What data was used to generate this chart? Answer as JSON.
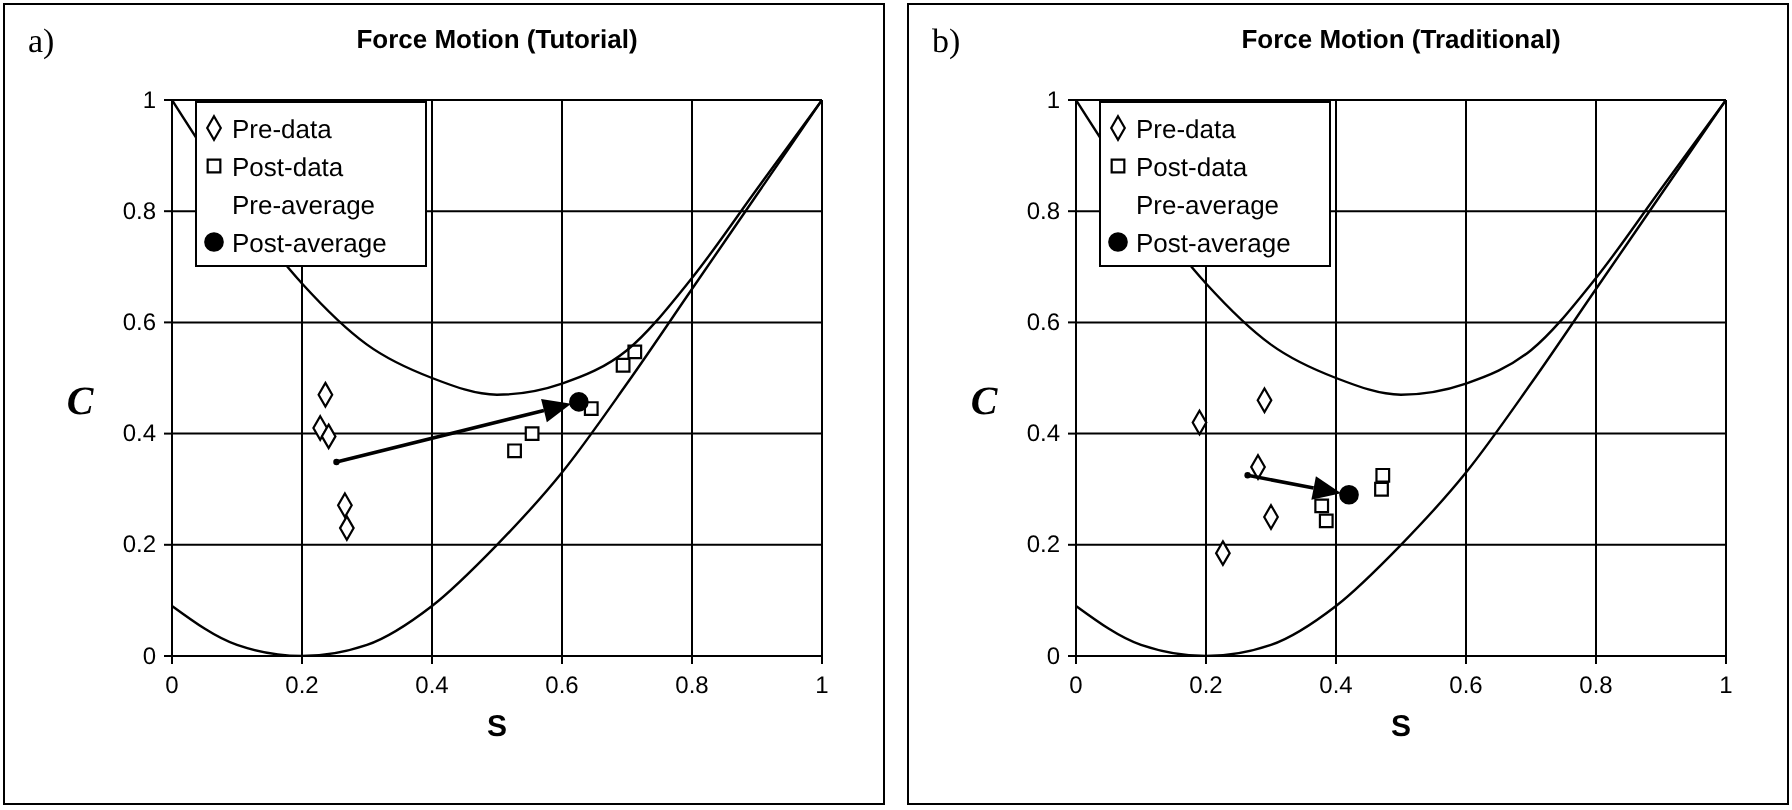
{
  "chart_data": [
    {
      "type": "scatter",
      "title": "Force Motion (Tutorial)",
      "xlabel": "S",
      "ylabel": "C",
      "annotations": [
        "a)"
      ],
      "xlim": [
        0,
        1
      ],
      "ylim": [
        0,
        1
      ],
      "xticks": [
        0,
        0.2,
        0.4,
        0.6,
        0.8,
        1
      ],
      "yticks": [
        0,
        0.2,
        0.4,
        0.6,
        0.8,
        1
      ],
      "grid": true,
      "legend": "top left",
      "series": [
        {
          "name": "Pre-data",
          "color": "#000000",
          "marker": "diamond",
          "x": [
            0.236,
            0.228,
            0.241,
            0.266,
            0.269
          ],
          "values": [
            0.47,
            0.41,
            0.395,
            0.271,
            0.23
          ]
        },
        {
          "name": "Post-data",
          "color": "#000000",
          "marker": "square",
          "x": [
            0.527,
            0.554,
            0.645,
            0.694,
            0.712
          ],
          "values": [
            0.369,
            0.4,
            0.445,
            0.523,
            0.547
          ]
        },
        {
          "name": "Pre-average",
          "color": "#000000",
          "x": [
            0.253
          ],
          "values": [
            0.349
          ]
        },
        {
          "name": "Post-average",
          "color": "#000000",
          "marker": "circle",
          "x": [
            0.626
          ],
          "values": [
            0.457
          ]
        },
        {
          "type": "line",
          "color": "#000000",
          "marker": "none",
          "x": [
            0,
            0.1,
            0.2,
            0.3,
            0.4,
            0.5,
            0.6,
            0.7,
            0.8,
            0.9,
            1
          ],
          "values": [
            0.09,
            0.02,
            0,
            0.02,
            0.09,
            0.2,
            0.33,
            0.49,
            0.66,
            0.83,
            1
          ]
        },
        {
          "type": "line",
          "color": "#000000",
          "marker": "none",
          "x": [
            0,
            0.2,
            0.3,
            0.4,
            0.5,
            0.6,
            0.7,
            0.8,
            0.9,
            1
          ],
          "values": [
            1,
            0.67,
            0.56,
            0.5,
            0.47,
            0.49,
            0.55,
            0.68,
            0.84,
            1
          ]
        }
      ]
    },
    {
      "type": "scatter",
      "title": "Force Motion (Traditional)",
      "xlabel": "S",
      "ylabel": "C",
      "annotations": [
        "b)"
      ],
      "xlim": [
        0,
        1
      ],
      "ylim": [
        0,
        1
      ],
      "xticks": [
        0,
        0.2,
        0.4,
        0.6,
        0.8,
        1
      ],
      "yticks": [
        0,
        0.2,
        0.4,
        0.6,
        0.8,
        1
      ],
      "grid": true,
      "legend": "top left",
      "series": [
        {
          "name": "Pre-data",
          "color": "#000000",
          "marker": "diamond",
          "x": [
            0.29,
            0.19,
            0.28,
            0.3,
            0.226
          ],
          "values": [
            0.46,
            0.42,
            0.34,
            0.25,
            0.185
          ]
        },
        {
          "name": "Post-data",
          "color": "#000000",
          "marker": "square",
          "x": [
            0.472,
            0.47,
            0.385,
            0.378
          ],
          "values": [
            0.325,
            0.3,
            0.243,
            0.27
          ]
        },
        {
          "name": "Pre-average",
          "color": "#000000",
          "x": [
            0.264
          ],
          "values": [
            0.325
          ]
        },
        {
          "name": "Post-average",
          "color": "#000000",
          "marker": "circle",
          "x": [
            0.42
          ],
          "values": [
            0.29
          ]
        },
        {
          "type": "line",
          "color": "#000000",
          "marker": "none",
          "x": [
            0,
            0.1,
            0.2,
            0.3,
            0.4,
            0.5,
            0.6,
            0.7,
            0.8,
            0.9,
            1
          ],
          "values": [
            0.09,
            0.02,
            0,
            0.02,
            0.09,
            0.2,
            0.33,
            0.49,
            0.66,
            0.83,
            1
          ]
        },
        {
          "type": "line",
          "color": "#000000",
          "marker": "none",
          "x": [
            0,
            0.2,
            0.3,
            0.4,
            0.5,
            0.6,
            0.7,
            0.8,
            0.9,
            1
          ],
          "values": [
            1,
            0.67,
            0.56,
            0.5,
            0.47,
            0.49,
            0.55,
            0.68,
            0.84,
            1
          ]
        }
      ]
    }
  ]
}
